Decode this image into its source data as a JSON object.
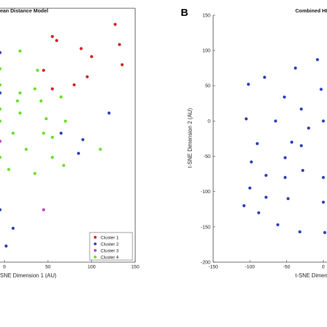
{
  "chart_data": [
    {
      "type": "scatter",
      "panel_letter": "",
      "title": "ean Distance Model",
      "xlabel": "SNE Dimension 1 (AU)",
      "ylabel": "",
      "xlim": [
        -5,
        150
      ],
      "x_ticks": [
        "0",
        "50",
        "100",
        "150"
      ],
      "grid": false,
      "legend_position": "bottom-right",
      "series": [
        {
          "name": "Cluster 1",
          "color": "#cc2222",
          "points": [
            [
              55,
              120
            ],
            [
              88,
              105
            ],
            [
              100,
              95
            ],
            [
              60,
              115
            ],
            [
              127,
              135
            ],
            [
              132,
              110
            ],
            [
              135,
              85
            ],
            [
              95,
              70
            ],
            [
              45,
              78
            ],
            [
              80,
              60
            ],
            [
              55,
              55
            ]
          ]
        },
        {
          "name": "Cluster 2",
          "color": "#2a3cb5",
          "points": [
            [
              -5,
              100
            ],
            [
              -5,
              50
            ],
            [
              120,
              25
            ],
            [
              65,
              0
            ],
            [
              90,
              -8
            ],
            [
              85,
              -25
            ],
            [
              -5,
              -95
            ],
            [
              10,
              -118
            ],
            [
              2,
              -140
            ]
          ]
        },
        {
          "name": "Cluster 3",
          "color": "#c040c0",
          "points": [
            [
              -5,
              -10
            ],
            [
              45,
              -95
            ]
          ]
        },
        {
          "name": "Cluster 4",
          "color": "#66dd22",
          "points": [
            [
              -5,
              80
            ],
            [
              -5,
              60
            ],
            [
              18,
              102
            ],
            [
              38,
              78
            ],
            [
              18,
              50
            ],
            [
              -5,
              30
            ],
            [
              15,
              40
            ],
            [
              35,
              55
            ],
            [
              65,
              45
            ],
            [
              42,
              40
            ],
            [
              18,
              25
            ],
            [
              48,
              18
            ],
            [
              70,
              15
            ],
            [
              -5,
              15
            ],
            [
              10,
              0
            ],
            [
              45,
              0
            ],
            [
              55,
              -5
            ],
            [
              -5,
              -30
            ],
            [
              25,
              -20
            ],
            [
              55,
              -30
            ],
            [
              110,
              -20
            ],
            [
              5,
              -45
            ],
            [
              35,
              -50
            ],
            [
              68,
              -40
            ]
          ]
        }
      ]
    },
    {
      "type": "scatter",
      "panel_letter": "B",
      "title": "Combined HI",
      "xlabel": "t-SNE Dimensio",
      "ylabel": "t-SNE Dimension 2 (AU)",
      "xlim": [
        -150,
        5
      ],
      "ylim": [
        -200,
        150
      ],
      "x_ticks": [
        "-150",
        "-100",
        "-50",
        "0"
      ],
      "y_ticks": [
        "150",
        "100",
        "50",
        "0",
        "-50",
        "-100",
        "-150",
        "-200"
      ],
      "grid": false,
      "series": [
        {
          "name": "",
          "color": "#2a3cb5",
          "points": [
            [
              -102,
              52
            ],
            [
              -80,
              62
            ],
            [
              -38,
              75
            ],
            [
              -8,
              87
            ],
            [
              -53,
              34
            ],
            [
              -30,
              17
            ],
            [
              -105,
              3
            ],
            [
              -65,
              0
            ],
            [
              -20,
              -10
            ],
            [
              -90,
              -32
            ],
            [
              -43,
              -30
            ],
            [
              -30,
              -35
            ],
            [
              -98,
              -58
            ],
            [
              -52,
              -52
            ],
            [
              -28,
              -70
            ],
            [
              -78,
              -77
            ],
            [
              -52,
              -80
            ],
            [
              -100,
              -95
            ],
            [
              -108,
              -120
            ],
            [
              -78,
              -108
            ],
            [
              -48,
              -110
            ],
            [
              -88,
              -130
            ],
            [
              -62,
              -147
            ],
            [
              -32,
              -157
            ],
            [
              0,
              -80
            ],
            [
              0,
              -115
            ],
            [
              2,
              -158
            ],
            [
              -3,
              45
            ],
            [
              0,
              0
            ]
          ]
        }
      ]
    }
  ],
  "legend": {
    "entries": [
      "Cluster 1",
      "Cluster 2",
      "Cluster 3",
      "Cluster 4"
    ]
  }
}
